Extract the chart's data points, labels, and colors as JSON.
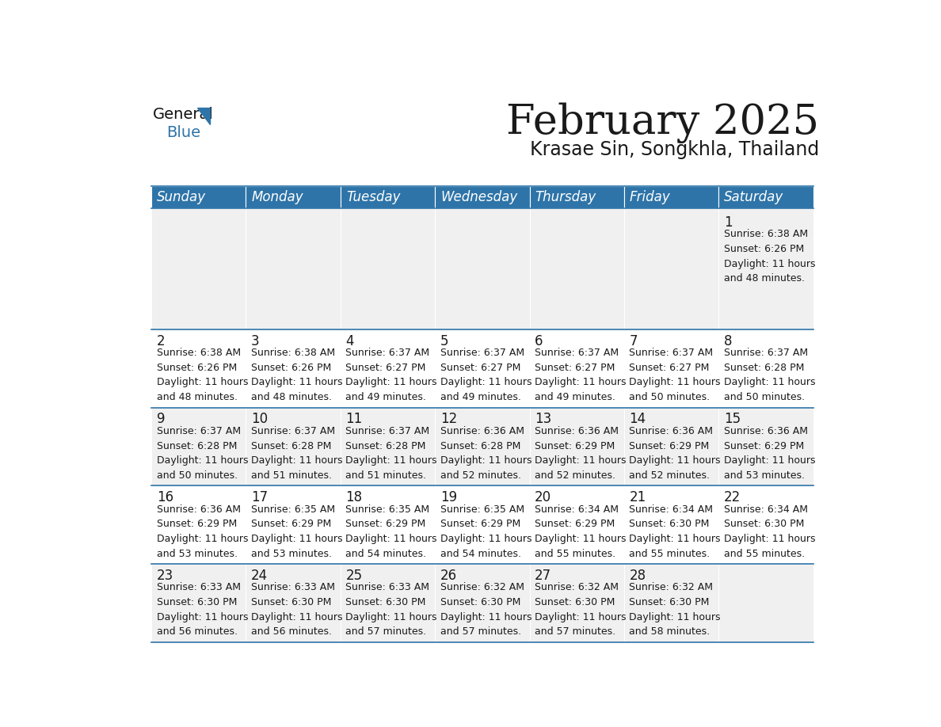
{
  "title": "February 2025",
  "subtitle": "Krasae Sin, Songkhla, Thailand",
  "header_bg": "#2E74A8",
  "header_text": "#FFFFFF",
  "row_bg": [
    "#F0F0F0",
    "#FFFFFF",
    "#F0F0F0",
    "#FFFFFF",
    "#F0F0F0"
  ],
  "cell_border": "#2E74A8",
  "day_names": [
    "Sunday",
    "Monday",
    "Tuesday",
    "Wednesday",
    "Thursday",
    "Friday",
    "Saturday"
  ],
  "calendar": [
    [
      null,
      null,
      null,
      null,
      null,
      null,
      {
        "day": 1,
        "sunrise": "6:38 AM",
        "sunset": "6:26 PM",
        "daylight": "11 hours and 48 minutes"
      }
    ],
    [
      {
        "day": 2,
        "sunrise": "6:38 AM",
        "sunset": "6:26 PM",
        "daylight": "11 hours and 48 minutes"
      },
      {
        "day": 3,
        "sunrise": "6:38 AM",
        "sunset": "6:26 PM",
        "daylight": "11 hours and 48 minutes"
      },
      {
        "day": 4,
        "sunrise": "6:37 AM",
        "sunset": "6:27 PM",
        "daylight": "11 hours and 49 minutes"
      },
      {
        "day": 5,
        "sunrise": "6:37 AM",
        "sunset": "6:27 PM",
        "daylight": "11 hours and 49 minutes"
      },
      {
        "day": 6,
        "sunrise": "6:37 AM",
        "sunset": "6:27 PM",
        "daylight": "11 hours and 49 minutes"
      },
      {
        "day": 7,
        "sunrise": "6:37 AM",
        "sunset": "6:27 PM",
        "daylight": "11 hours and 50 minutes"
      },
      {
        "day": 8,
        "sunrise": "6:37 AM",
        "sunset": "6:28 PM",
        "daylight": "11 hours and 50 minutes"
      }
    ],
    [
      {
        "day": 9,
        "sunrise": "6:37 AM",
        "sunset": "6:28 PM",
        "daylight": "11 hours and 50 minutes"
      },
      {
        "day": 10,
        "sunrise": "6:37 AM",
        "sunset": "6:28 PM",
        "daylight": "11 hours and 51 minutes"
      },
      {
        "day": 11,
        "sunrise": "6:37 AM",
        "sunset": "6:28 PM",
        "daylight": "11 hours and 51 minutes"
      },
      {
        "day": 12,
        "sunrise": "6:36 AM",
        "sunset": "6:28 PM",
        "daylight": "11 hours and 52 minutes"
      },
      {
        "day": 13,
        "sunrise": "6:36 AM",
        "sunset": "6:29 PM",
        "daylight": "11 hours and 52 minutes"
      },
      {
        "day": 14,
        "sunrise": "6:36 AM",
        "sunset": "6:29 PM",
        "daylight": "11 hours and 52 minutes"
      },
      {
        "day": 15,
        "sunrise": "6:36 AM",
        "sunset": "6:29 PM",
        "daylight": "11 hours and 53 minutes"
      }
    ],
    [
      {
        "day": 16,
        "sunrise": "6:36 AM",
        "sunset": "6:29 PM",
        "daylight": "11 hours and 53 minutes"
      },
      {
        "day": 17,
        "sunrise": "6:35 AM",
        "sunset": "6:29 PM",
        "daylight": "11 hours and 53 minutes"
      },
      {
        "day": 18,
        "sunrise": "6:35 AM",
        "sunset": "6:29 PM",
        "daylight": "11 hours and 54 minutes"
      },
      {
        "day": 19,
        "sunrise": "6:35 AM",
        "sunset": "6:29 PM",
        "daylight": "11 hours and 54 minutes"
      },
      {
        "day": 20,
        "sunrise": "6:34 AM",
        "sunset": "6:29 PM",
        "daylight": "11 hours and 55 minutes"
      },
      {
        "day": 21,
        "sunrise": "6:34 AM",
        "sunset": "6:30 PM",
        "daylight": "11 hours and 55 minutes"
      },
      {
        "day": 22,
        "sunrise": "6:34 AM",
        "sunset": "6:30 PM",
        "daylight": "11 hours and 55 minutes"
      }
    ],
    [
      {
        "day": 23,
        "sunrise": "6:33 AM",
        "sunset": "6:30 PM",
        "daylight": "11 hours and 56 minutes"
      },
      {
        "day": 24,
        "sunrise": "6:33 AM",
        "sunset": "6:30 PM",
        "daylight": "11 hours and 56 minutes"
      },
      {
        "day": 25,
        "sunrise": "6:33 AM",
        "sunset": "6:30 PM",
        "daylight": "11 hours and 57 minutes"
      },
      {
        "day": 26,
        "sunrise": "6:32 AM",
        "sunset": "6:30 PM",
        "daylight": "11 hours and 57 minutes"
      },
      {
        "day": 27,
        "sunrise": "6:32 AM",
        "sunset": "6:30 PM",
        "daylight": "11 hours and 57 minutes"
      },
      {
        "day": 28,
        "sunrise": "6:32 AM",
        "sunset": "6:30 PM",
        "daylight": "11 hours and 58 minutes"
      },
      null
    ]
  ],
  "title_fontsize": 38,
  "subtitle_fontsize": 17,
  "day_name_fontsize": 12,
  "day_num_fontsize": 12,
  "cell_text_fontsize": 9
}
